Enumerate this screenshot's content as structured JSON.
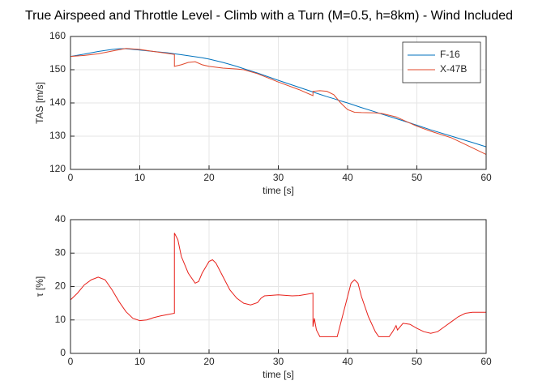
{
  "chart_data": [
    {
      "type": "line",
      "title": "True Airspeed and Throttle Level - Climb with a Turn (M=0.5, h=8km) - Wind Included",
      "xlabel": "time [s]",
      "ylabel": "TAS [m/s]",
      "xlim": [
        0,
        60
      ],
      "ylim": [
        120,
        160
      ],
      "xticks": [
        0,
        10,
        20,
        30,
        40,
        50,
        60
      ],
      "yticks": [
        120,
        130,
        140,
        150,
        160
      ],
      "grid": true,
      "legend": "northeast",
      "x": [
        0,
        2,
        4,
        6,
        7,
        8,
        10,
        12,
        14,
        15,
        15,
        16,
        17,
        18,
        19,
        20,
        22,
        24,
        25,
        27,
        30,
        33,
        35,
        35,
        36,
        37,
        38,
        39,
        40,
        41,
        42,
        44,
        45,
        47,
        50,
        52,
        55,
        58,
        60
      ],
      "series": [
        {
          "name": "F-16",
          "color": "#0072bd",
          "values": [
            154,
            154.7,
            155.5,
            156.1,
            156.3,
            156.3,
            155.9,
            155.5,
            155.1,
            154.8,
            154.8,
            154.5,
            154.2,
            153.9,
            153.6,
            153.2,
            152.2,
            151,
            150.3,
            149,
            146.8,
            144.7,
            143.3,
            143.3,
            142.6,
            141.9,
            141.3,
            140.6,
            140,
            139.3,
            138.6,
            137.3,
            136.6,
            135.3,
            133.3,
            131.9,
            130,
            128.1,
            126.8
          ]
        },
        {
          "name": "X-47B",
          "color": "#e0472a",
          "values": [
            154,
            154.3,
            154.8,
            155.6,
            156,
            156.4,
            156.1,
            155.5,
            154.9,
            154.6,
            151,
            151.5,
            152.2,
            152.4,
            151.5,
            151,
            150.5,
            150.2,
            150,
            148.8,
            146.3,
            144,
            142.2,
            143.5,
            143.7,
            143.5,
            142.5,
            140,
            138,
            137.2,
            137.1,
            137,
            136.8,
            135.8,
            133,
            131.5,
            129.5,
            126.5,
            124.5
          ]
        }
      ]
    },
    {
      "type": "line",
      "xlabel": "time [s]",
      "ylabel": "τ [%]",
      "xlim": [
        0,
        60
      ],
      "ylim": [
        0,
        40
      ],
      "xticks": [
        0,
        10,
        20,
        30,
        40,
        50,
        60
      ],
      "yticks": [
        0,
        10,
        20,
        30,
        40
      ],
      "grid": true,
      "x": [
        0,
        1,
        2,
        3,
        4,
        5,
        6,
        7,
        8,
        9,
        10,
        11,
        12,
        13,
        14,
        15,
        15,
        15.5,
        16,
        17,
        18,
        18.5,
        19,
        20,
        20.5,
        21,
        22,
        23,
        24,
        25,
        26,
        27,
        27.5,
        28,
        30,
        32,
        33,
        35,
        35,
        35.2,
        35.5,
        36,
        38.5,
        39,
        40,
        40.5,
        41,
        41.5,
        42,
        43,
        44,
        44.5,
        46,
        46.5,
        47,
        47.2,
        48,
        49,
        50,
        51,
        52,
        53,
        54,
        55,
        56,
        57,
        58,
        60
      ],
      "series": [
        {
          "color": "#e8201a",
          "values": [
            16,
            18,
            20.5,
            22,
            22.8,
            22,
            19,
            15.5,
            12.5,
            10.5,
            9.8,
            10,
            10.7,
            11.2,
            11.6,
            12,
            36,
            34,
            29,
            24,
            21,
            21.5,
            24,
            27.5,
            28,
            27,
            23,
            19,
            16.5,
            15,
            14.5,
            15.2,
            16.5,
            17.2,
            17.5,
            17.2,
            17.3,
            18,
            8,
            10.5,
            7,
            5,
            5,
            9,
            17,
            21,
            22,
            21,
            17,
            11,
            6.5,
            5,
            5,
            6.5,
            8.3,
            7,
            9,
            8.7,
            7.5,
            6.5,
            6,
            6.5,
            8,
            9.5,
            11,
            12,
            12.3,
            12.3
          ]
        }
      ]
    }
  ]
}
